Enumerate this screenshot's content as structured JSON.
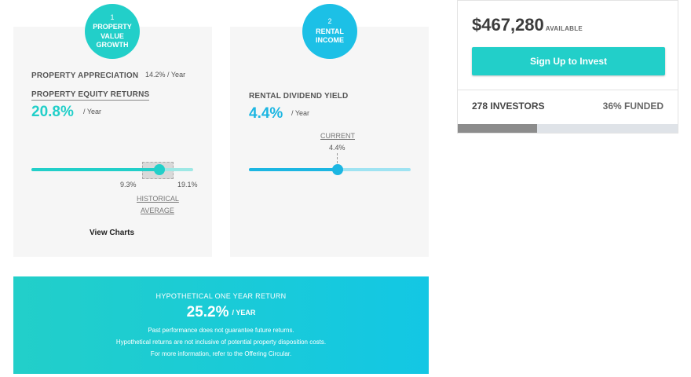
{
  "steps": [
    {
      "number": "1",
      "line1": "PROPERTY",
      "line2": "VALUE",
      "line3": "GROWTH"
    },
    {
      "number": "2",
      "line1": "RENTAL",
      "line2": "INCOME"
    }
  ],
  "growth": {
    "appreciation_label": "PROPERTY APPRECIATION",
    "appreciation_value": "14.2%",
    "appreciation_unit": "/  Year",
    "equity_label": "PROPERTY EQUITY RETURNS",
    "equity_value": "20.8%",
    "equity_unit": "/  Year",
    "slider_min_label": "9.3%",
    "slider_max_label": "19.1%",
    "historical_line1": "HISTORICAL",
    "historical_line2": "AVERAGE",
    "slider_fraction": 0.79,
    "view_charts": "View Charts"
  },
  "income": {
    "yield_label": "RENTAL DIVIDEND YIELD",
    "yield_value": "4.4%",
    "yield_unit": "/  Year",
    "current_label": "CURRENT",
    "current_value": "4.4%",
    "slider_fraction": 0.55
  },
  "banner": {
    "title": "HYPOTHETICAL ONE YEAR RETURN",
    "value": "25.2%",
    "unit": "/  YEAR",
    "note1": "Past performance does not guarantee future returns.",
    "note2": "Hypothetical returns are not inclusive of potential property disposition costs.",
    "note3": "For more information, refer to the Offering Circular."
  },
  "invest": {
    "amount": "$467,280",
    "available": "AVAILABLE",
    "cta": "Sign Up to Invest",
    "investors": "278 INVESTORS",
    "funded": "36% FUNDED",
    "funded_fraction": 0.36
  },
  "colors": {
    "accent_teal": "#22cfc9",
    "accent_blue": "#1cb6e2",
    "progress_fill": "#8c8c8c"
  }
}
